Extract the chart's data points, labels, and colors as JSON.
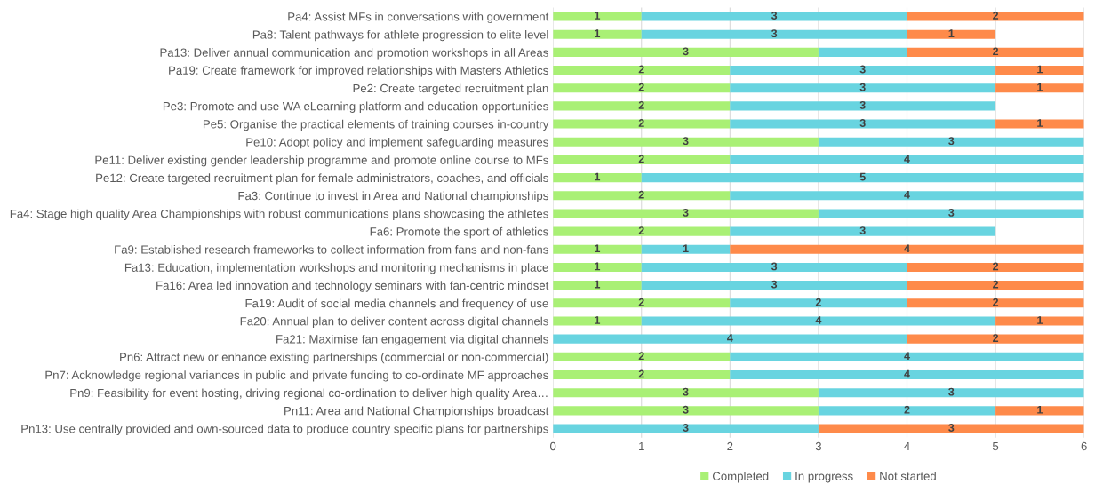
{
  "chart_data": {
    "type": "bar",
    "orientation": "horizontal",
    "stacked": true,
    "categories": [
      "Pa4: Assist MFs in conversations with government",
      "Pa8: Talent pathways for athlete progression to elite level",
      "Pa13: Deliver annual communication and promotion workshops in all Areas",
      "Pa19: Create framework for improved relationships with Masters Athletics",
      "Pe2: Create targeted recruitment plan",
      "Pe3: Promote and use WA eLearning platform and education opportunities",
      "Pe5: Organise the practical elements of training courses in-country",
      "Pe10: Adopt policy and implement safeguarding measures",
      "Pe11: Deliver existing gender leadership programme and promote online course to MFs",
      "Pe12: Create targeted recruitment plan for female administrators, coaches, and officials",
      "Fa3: Continue to invest in Area and National championships",
      "Fa4: Stage high quality Area Championships with robust communications plans showcasing the athletes",
      "Fa6: Promote the sport of athletics",
      "Fa9: Established research frameworks to collect information from fans and non-fans",
      "Fa13: Education, implementation workshops and monitoring mechanisms in place",
      "Fa16: Area led innovation and technology seminars with fan-centric mindset",
      "Fa19: Audit of social media channels and frequency of use",
      "Fa20: Annual plan to deliver content across digital channels",
      "Fa21: Maximise fan engagement via digital channels",
      "Pn6: Attract new or enhance existing partnerships (commercial or non-commercial)",
      "Pn7: Acknowledge regional variances in public and private funding to co-ordinate MF approaches",
      "Pn9: Feasibility for event hosting, driving regional co-ordination to deliver high quality Area…",
      "Pn11: Area and National Championships broadcast",
      "Pn13: Use centrally provided and own-sourced data to produce country specific plans for partnerships"
    ],
    "series": [
      {
        "name": "Completed",
        "color": "#a9f075",
        "values": [
          1,
          1,
          3,
          2,
          2,
          2,
          2,
          3,
          2,
          1,
          2,
          3,
          2,
          1,
          1,
          1,
          2,
          1,
          null,
          2,
          2,
          3,
          3,
          null
        ],
        "value_labels": [
          "1",
          "1",
          "3",
          "2",
          "2",
          "2",
          "2",
          "3",
          "2",
          "1",
          "2",
          "3",
          "2",
          "1",
          "1",
          "1",
          "2",
          "1",
          null,
          "2",
          "2",
          "3",
          "3",
          null
        ]
      },
      {
        "name": "In progress",
        "color": "#68d4e0",
        "values": [
          3,
          3,
          1,
          3,
          3,
          3,
          3,
          3,
          4,
          5,
          4,
          3,
          3,
          1,
          3,
          3,
          2,
          4,
          4,
          4,
          4,
          3,
          2,
          3
        ],
        "value_labels": [
          "3",
          "3",
          null,
          "3",
          "3",
          "3",
          "3",
          "3",
          "4",
          "5",
          "4",
          "3",
          "3",
          "1",
          "3",
          "3",
          "2",
          "4",
          "4",
          "4",
          "4",
          "3",
          "2",
          "3"
        ]
      },
      {
        "name": "Not started",
        "color": "#fe8a4a",
        "values": [
          2,
          1,
          2,
          1,
          1,
          null,
          1,
          null,
          null,
          null,
          null,
          null,
          null,
          4,
          2,
          2,
          2,
          1,
          2,
          null,
          null,
          null,
          1,
          3
        ],
        "value_labels": [
          "2",
          "1",
          "2",
          "1",
          "1",
          null,
          "1",
          null,
          null,
          null,
          null,
          null,
          null,
          "4",
          "2",
          "2",
          "2",
          "1",
          "2",
          null,
          null,
          null,
          "1",
          "3"
        ]
      }
    ],
    "xlim": [
      0,
      6
    ],
    "xticks": [
      0,
      1,
      2,
      3,
      4,
      5,
      6
    ],
    "grid": "x",
    "legend": "bottom"
  }
}
